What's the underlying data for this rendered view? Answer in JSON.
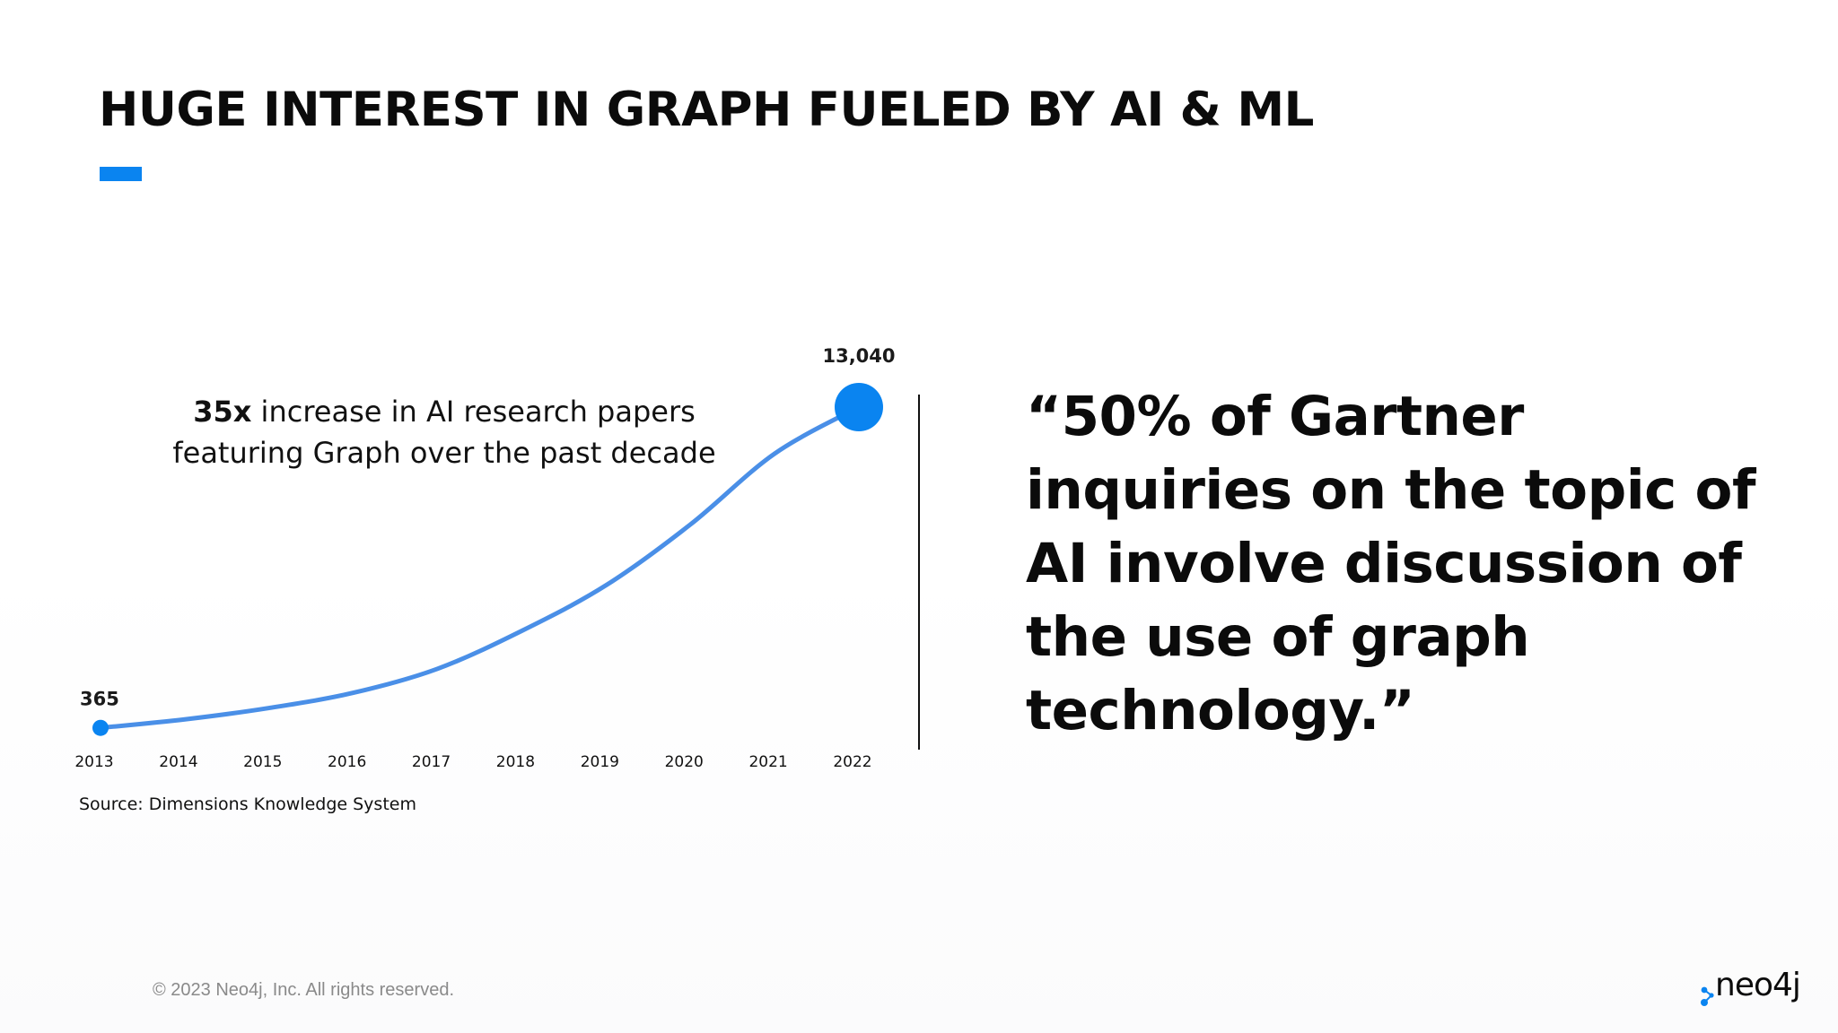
{
  "slide": {
    "title": "HUGE INTEREST IN GRAPH FUELED BY AI & ML",
    "accent_color": "#0a84f0",
    "chart_annotation": {
      "bold": "35x",
      "rest_line1": " increase in AI research papers",
      "line2": "featuring Graph over the past decade"
    },
    "source": "Source: Dimensions Knowledge System",
    "quote": "“50% of Gartner inquiries on the topic of AI involve discussion of the use of graph technology.”",
    "copyright": "© 2023 Neo4j, Inc. All rights reserved.",
    "logo": {
      "text": "neo4j",
      "icon": "neo4j-dots-icon",
      "color": "#0a84f0"
    }
  },
  "chart_data": {
    "type": "line",
    "title": "",
    "xlabel": "",
    "ylabel": "",
    "x": [
      "2013",
      "2014",
      "2015",
      "2016",
      "2017",
      "2018",
      "2019",
      "2020",
      "2021",
      "2022"
    ],
    "series": [
      {
        "values": [
          365,
          700,
          1150,
          1750,
          2700,
          4200,
          6000,
          8400,
          11200,
          13040
        ]
      }
    ],
    "data_labels": [
      {
        "x": "2013",
        "text": "365"
      },
      {
        "x": "2022",
        "text": "13,040"
      }
    ],
    "ylim": [
      0,
      13040
    ],
    "grid": false,
    "y_axis_visible": false,
    "line_color": "#4a8fe7",
    "marker_color": "#0a84f0"
  }
}
